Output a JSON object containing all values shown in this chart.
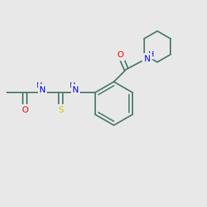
{
  "bg_color": "#e8e8e8",
  "bond_color": "#4a7a6a",
  "bond_lw": 1.5,
  "atom_colors": {
    "N": "#0000ff",
    "O": "#ff0000",
    "S": "#cccc00",
    "C": "#4a7a6a",
    "H": "#0000cc"
  },
  "font_size": 9
}
